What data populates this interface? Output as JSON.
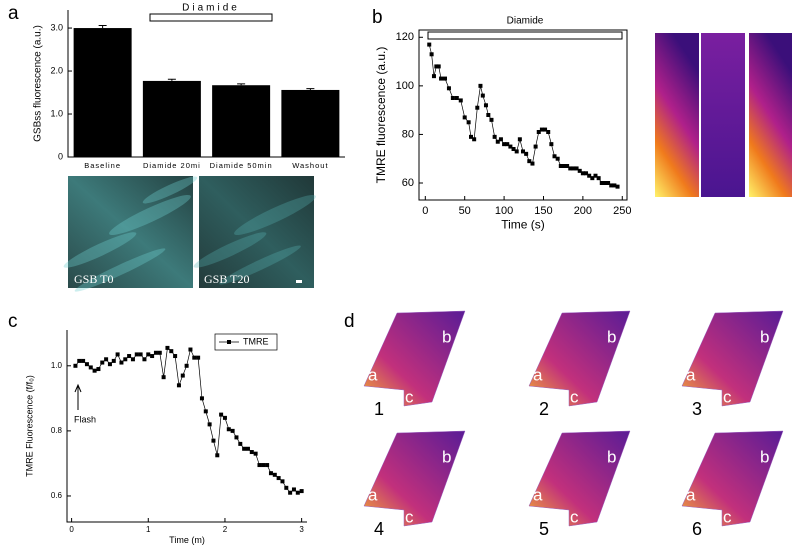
{
  "figure_labels": [
    "a",
    "b",
    "c",
    "d"
  ],
  "image_labels": [
    "GSB T0",
    "GSB T20"
  ],
  "map_region_labels": [
    "a",
    "b",
    "c"
  ],
  "map_numbers": [
    "1",
    "2",
    "3",
    "4",
    "5",
    "6"
  ],
  "chart_data": [
    {
      "type": "bar",
      "ylabel": "GSBss fluorescence (a.u.)",
      "annotation": "Diamide",
      "categories": [
        "Baseline",
        "Diamide 20mi",
        "Diamide 50min",
        "Washout"
      ],
      "values": [
        3.0,
        1.77,
        1.67,
        1.56
      ],
      "errors": [
        0.06,
        0.04,
        0.03,
        0.03
      ],
      "color": "#000000",
      "ylim": [
        0,
        3.42
      ],
      "yticks": [
        0,
        {
          "value": 1,
          "label": "1.0"
        },
        {
          "value": 2,
          "label": "2.0"
        },
        {
          "value": 3,
          "label": "3.0"
        }
      ]
    },
    {
      "type": "line",
      "xlabel": "Time (s)",
      "ylabel": "TMRE fluorescence (a.u.)",
      "annotation": "Diamide",
      "x": [
        5,
        8,
        11,
        14,
        17,
        20,
        25,
        30,
        35,
        40,
        45,
        50,
        55,
        58,
        62,
        66,
        70,
        73,
        77,
        80,
        84,
        88,
        92,
        96,
        100,
        104,
        108,
        112,
        116,
        120,
        124,
        128,
        132,
        136,
        140,
        144,
        148,
        152,
        156,
        160,
        164,
        168,
        172,
        176,
        180,
        184,
        188,
        192,
        196,
        200,
        204,
        208,
        212,
        216,
        220,
        224,
        228,
        232,
        236,
        240,
        244
      ],
      "values": [
        117,
        113,
        104,
        108,
        108,
        103,
        103,
        99,
        95,
        95,
        94,
        87,
        85,
        79,
        78,
        91,
        100,
        96,
        92,
        88,
        86,
        79,
        77,
        78,
        76,
        76,
        75,
        74,
        73,
        78,
        73,
        72,
        69,
        68,
        75,
        81,
        82,
        82,
        81,
        76,
        71,
        70,
        67,
        67,
        67,
        66,
        66,
        66,
        65,
        64,
        64,
        63,
        62,
        63,
        62,
        60,
        60,
        60,
        59,
        59,
        58.5
      ],
      "color": "#000000",
      "xlim": [
        -8,
        256
      ],
      "ylim": [
        53,
        123
      ],
      "xticks": [
        0,
        50,
        100,
        150,
        200,
        250
      ],
      "yticks": [
        60,
        80,
        100,
        120
      ]
    },
    {
      "type": "line",
      "xlabel": "Time (m)",
      "ylabel": "TMRE Fluorescence (f/f₀)",
      "annotation": "Flash",
      "legend": "upper right",
      "series": [
        {
          "name": "TMRE",
          "color": "#000000",
          "x": [
            0.05,
            0.1,
            0.15,
            0.2,
            0.25,
            0.3,
            0.35,
            0.4,
            0.45,
            0.5,
            0.55,
            0.6,
            0.65,
            0.7,
            0.75,
            0.8,
            0.85,
            0.9,
            0.95,
            1.0,
            1.05,
            1.1,
            1.15,
            1.2,
            1.25,
            1.3,
            1.35,
            1.4,
            1.45,
            1.5,
            1.55,
            1.6,
            1.65,
            1.7,
            1.75,
            1.8,
            1.85,
            1.9,
            1.95,
            2.0,
            2.05,
            2.1,
            2.15,
            2.2,
            2.25,
            2.3,
            2.35,
            2.4,
            2.45,
            2.5,
            2.55,
            2.6,
            2.65,
            2.7,
            2.75,
            2.8,
            2.85,
            2.9,
            2.95,
            3.0
          ],
          "values": [
            1.0,
            1.015,
            1.015,
            1.005,
            0.995,
            0.985,
            0.99,
            1.01,
            1.02,
            1.005,
            1.015,
            1.035,
            1.01,
            1.02,
            1.03,
            1.02,
            1.035,
            1.035,
            1.02,
            1.035,
            1.03,
            1.04,
            1.04,
            0.965,
            1.055,
            1.045,
            1.03,
            0.94,
            0.97,
            1.0,
            1.05,
            1.025,
            1.025,
            0.9,
            0.86,
            0.82,
            0.77,
            0.725,
            0.85,
            0.84,
            0.805,
            0.8,
            0.78,
            0.76,
            0.745,
            0.745,
            0.735,
            0.73,
            0.695,
            0.695,
            0.695,
            0.67,
            0.665,
            0.655,
            0.645,
            0.625,
            0.61,
            0.62,
            0.61,
            0.615
          ]
        }
      ],
      "xlim": [
        -0.06,
        3.07
      ],
      "ylim": [
        0.52,
        1.11
      ],
      "xticks": [
        0,
        1,
        2,
        3
      ],
      "yticks": [
        0.6,
        0.8,
        {
          "value": 1,
          "label": "1.0"
        }
      ]
    }
  ]
}
